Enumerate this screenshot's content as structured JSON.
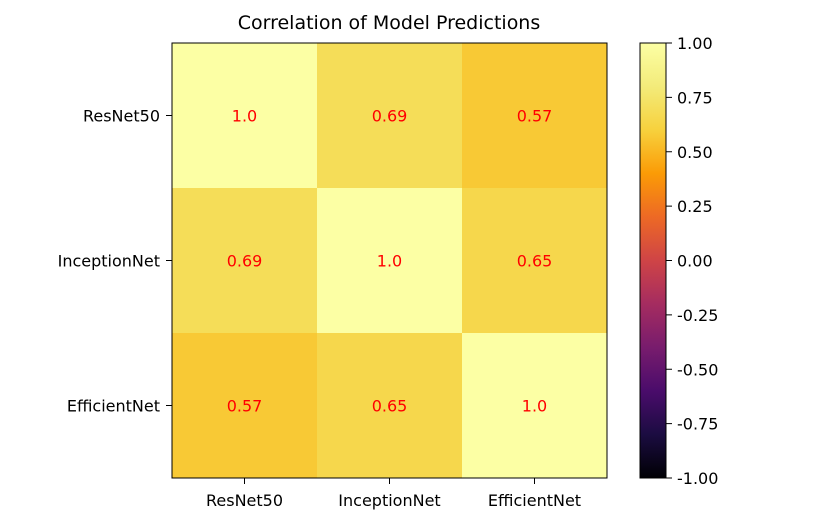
{
  "chart_data": {
    "type": "heatmap",
    "title": "Correlation of Model Predictions",
    "rows": [
      "ResNet50",
      "InceptionNet",
      "EfficientNet"
    ],
    "columns": [
      "ResNet50",
      "InceptionNet",
      "EfficientNet"
    ],
    "values": [
      [
        1.0,
        0.69,
        0.57
      ],
      [
        0.69,
        1.0,
        0.65
      ],
      [
        0.57,
        0.65,
        1.0
      ]
    ],
    "cell_labels": [
      [
        "1.0",
        "0.69",
        "0.57"
      ],
      [
        "0.69",
        "1.0",
        "0.65"
      ],
      [
        "0.57",
        "0.65",
        "1.0"
      ]
    ],
    "value_range": [
      -1.0,
      1.0
    ],
    "colormap": "inferno",
    "colorbar_ticks": [
      "1.00",
      "0.75",
      "0.50",
      "0.25",
      "0.00",
      "-0.25",
      "-0.50",
      "-0.75",
      "-1.00"
    ],
    "colorbar_tick_values": [
      1.0,
      0.75,
      0.5,
      0.25,
      0.0,
      -0.25,
      -0.5,
      -0.75,
      -1.0
    ],
    "annotation_color": "#ff0000",
    "grid": false
  }
}
